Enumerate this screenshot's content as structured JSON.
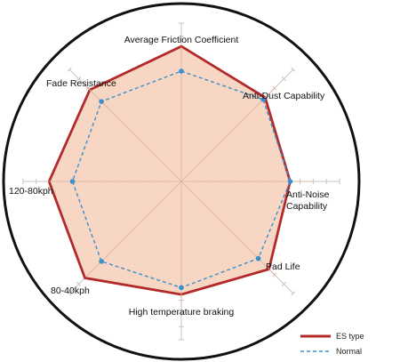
{
  "chart_data": {
    "type": "radar",
    "title": "",
    "axes": [
      "Average Friction Coefficient",
      "Anti-Dust Capability",
      "Anti-Noise Capability",
      "Pad Life",
      "High temperature braking",
      "80-40kph",
      "120-80kph",
      "Fade Resistance"
    ],
    "scale": {
      "min": 0,
      "max": 10,
      "gridlines": 5,
      "tick_marks": 10
    },
    "series": [
      {
        "name": "ES type",
        "values": [
          9.8,
          8.6,
          7.9,
          9.0,
          8.2,
          9.9,
          9.6,
          9.4
        ],
        "color": "#b22a2a",
        "fill": "#f6d2bd",
        "style": "solid"
      },
      {
        "name": "Normal",
        "values": [
          8.0,
          8.4,
          7.9,
          7.9,
          7.7,
          8.2,
          7.9,
          8.2
        ],
        "color": "#3b8fcc",
        "style": "dashed"
      }
    ],
    "legend": {
      "position": "bottom-right"
    }
  }
}
